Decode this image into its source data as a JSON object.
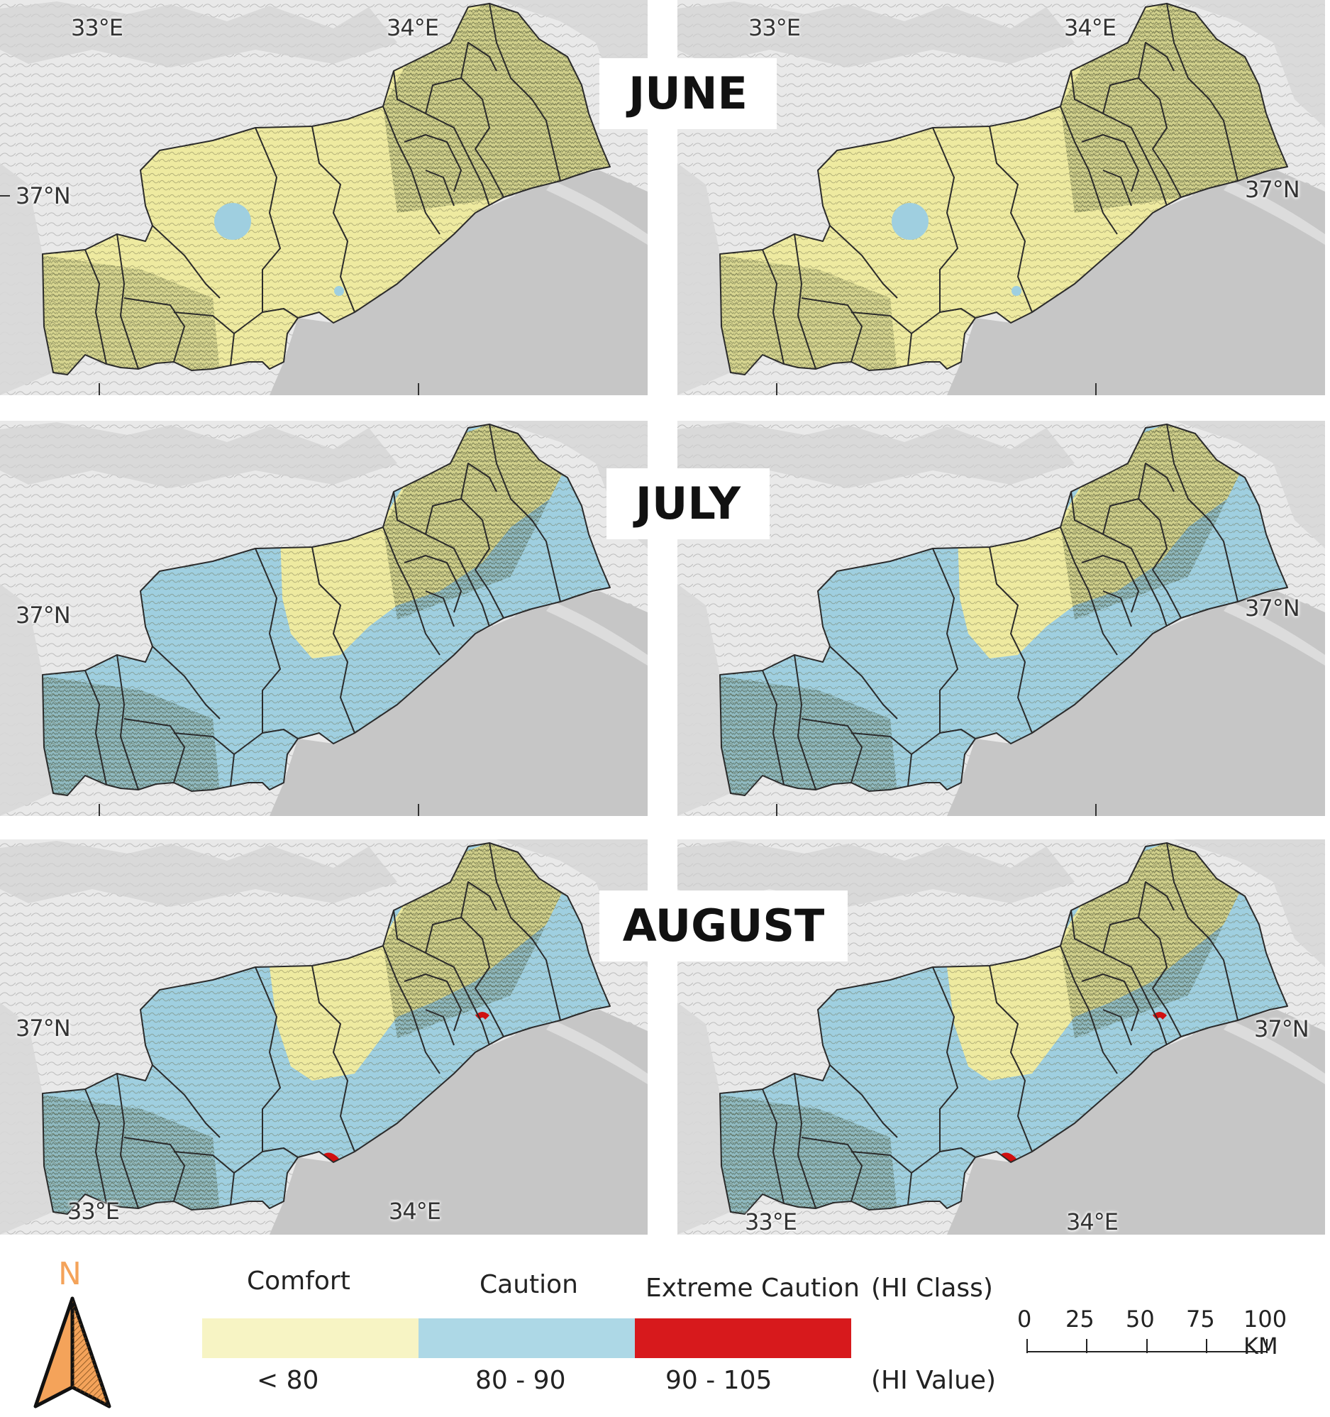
{
  "maps": {
    "coords": {
      "lon_33": "33°E",
      "lon_34": "34°E",
      "lat_37": "37°N"
    },
    "months": {
      "june": "JUNE",
      "july": "JULY",
      "august": "AUGUST"
    },
    "panels": [
      {
        "row": "june",
        "column": "left",
        "distribution": "comfort"
      },
      {
        "row": "june",
        "column": "right",
        "distribution": "comfort"
      },
      {
        "row": "july",
        "column": "left",
        "distribution": "caution-west-and-coast"
      },
      {
        "row": "july",
        "column": "right",
        "distribution": "caution-west-and-coast"
      },
      {
        "row": "august",
        "column": "left",
        "distribution": "caution-with-extreme-spots"
      },
      {
        "row": "august",
        "column": "right",
        "distribution": "caution-with-extreme-spots"
      }
    ]
  },
  "north_arrow": {
    "label": "N",
    "color": "#f4a35a"
  },
  "legend": {
    "class_header": "(HI Class)",
    "value_header": "(HI Value)",
    "classes": [
      {
        "name": "Comfort",
        "range": "< 80",
        "color": "#f7f4c4"
      },
      {
        "name": "Caution",
        "range": "80 - 90",
        "color": "#add8e6"
      },
      {
        "name": "Extreme Caution",
        "range": "90 - 105",
        "color": "#d7191c"
      }
    ]
  },
  "scale_bar": {
    "ticks": [
      "0",
      "25",
      "50",
      "75",
      "100 KM"
    ]
  },
  "colors": {
    "comfort_fill": "#eeeaa0",
    "caution_fill": "#9fcfe0",
    "extreme_fill": "#d01010",
    "sea": "#c8c8c8",
    "land": "#e9e9e9",
    "boundary": "#2b2b2b"
  }
}
